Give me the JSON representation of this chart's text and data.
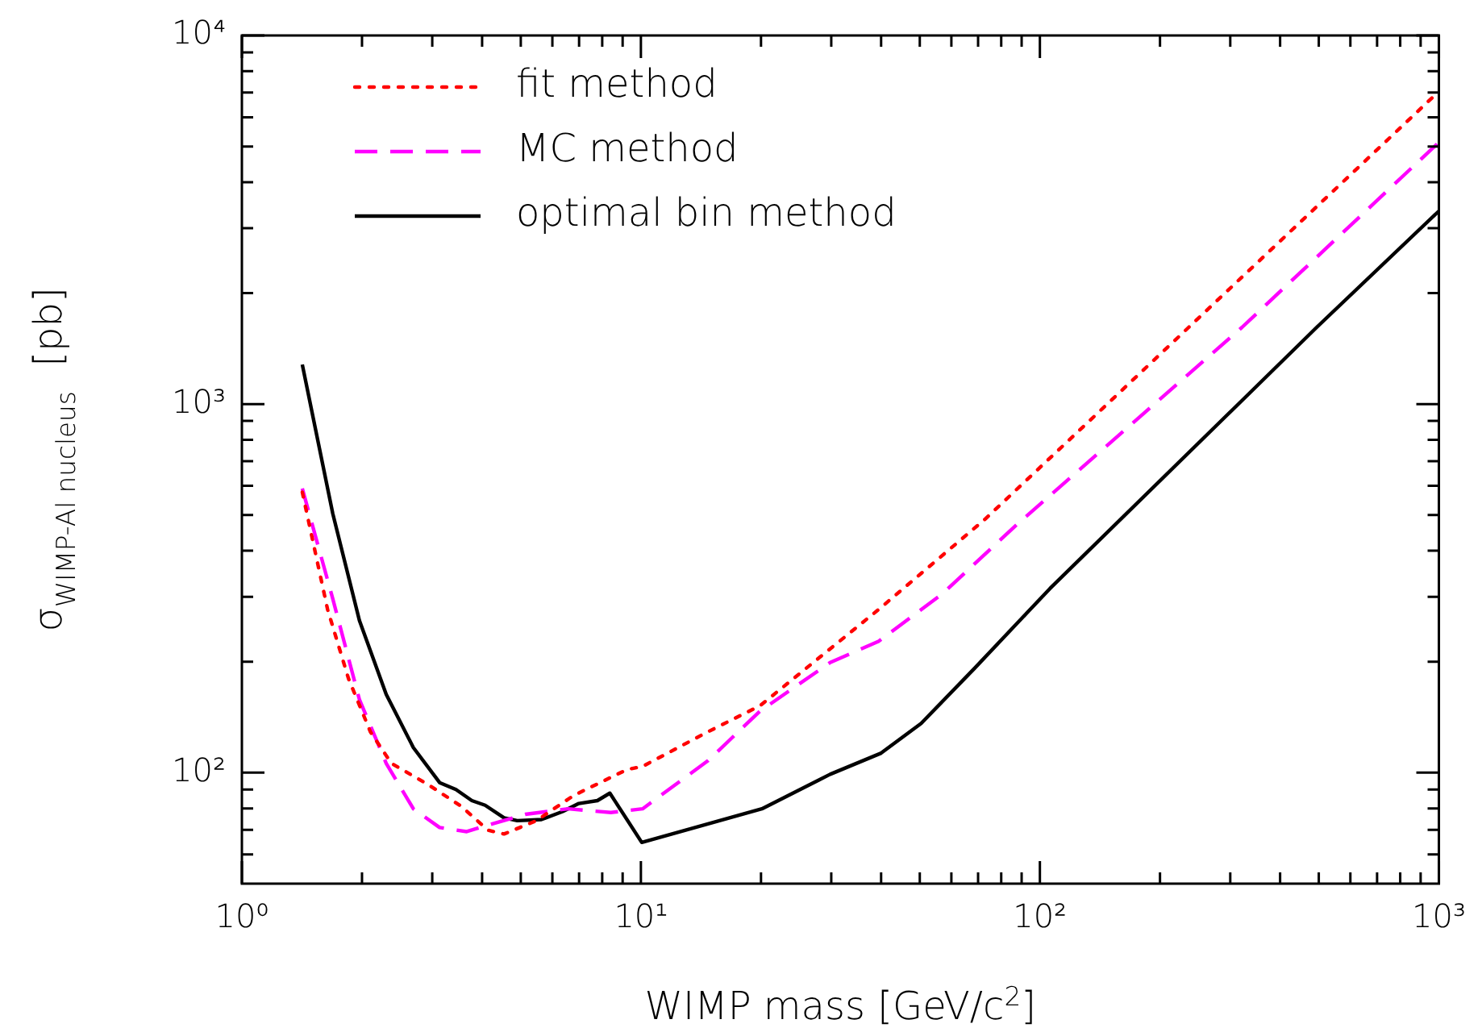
{
  "chart_data": {
    "type": "line",
    "xlabel": "WIMP mass [GeV/c$^{2}$]",
    "ylabel": "σ$_{WIMP-Al nucleus}$  [pb]",
    "log": "xy",
    "legend": "top left",
    "grid": false,
    "marker": "none",
    "xlim": [
      1,
      1000
    ],
    "ylim": [
      50,
      10000
    ],
    "xticks": [
      {
        "value": 1,
        "label": "10⁰"
      },
      {
        "value": 2,
        "label": null
      },
      {
        "value": 3,
        "label": null
      },
      {
        "value": 4,
        "label": null
      },
      {
        "value": 5,
        "label": null
      },
      {
        "value": 6,
        "label": null
      },
      {
        "value": 7,
        "label": null
      },
      {
        "value": 8,
        "label": null
      },
      {
        "value": 9,
        "label": null
      },
      {
        "value": 10,
        "label": "10¹"
      },
      {
        "value": 20,
        "label": null
      },
      {
        "value": 30,
        "label": null
      },
      {
        "value": 40,
        "label": null
      },
      {
        "value": 50,
        "label": null
      },
      {
        "value": 60,
        "label": null
      },
      {
        "value": 70,
        "label": null
      },
      {
        "value": 80,
        "label": null
      },
      {
        "value": 90,
        "label": null
      },
      {
        "value": 100,
        "label": "10²"
      },
      {
        "value": 200,
        "label": null
      },
      {
        "value": 300,
        "label": null
      },
      {
        "value": 400,
        "label": null
      },
      {
        "value": 500,
        "label": null
      },
      {
        "value": 600,
        "label": null
      },
      {
        "value": 700,
        "label": null
      },
      {
        "value": 800,
        "label": null
      },
      {
        "value": 900,
        "label": null
      },
      {
        "value": 1000,
        "label": "10³"
      }
    ],
    "yticks": [
      {
        "value": 60,
        "label": null
      },
      {
        "value": 70,
        "label": null
      },
      {
        "value": 80,
        "label": null
      },
      {
        "value": 90,
        "label": null
      },
      {
        "value": 100,
        "label": "10²"
      },
      {
        "value": 200,
        "label": null
      },
      {
        "value": 300,
        "label": null
      },
      {
        "value": 400,
        "label": null
      },
      {
        "value": 500,
        "label": null
      },
      {
        "value": 600,
        "label": null
      },
      {
        "value": 700,
        "label": null
      },
      {
        "value": 800,
        "label": null
      },
      {
        "value": 900,
        "label": null
      },
      {
        "value": 1000,
        "label": "10³"
      },
      {
        "value": 2000,
        "label": null
      },
      {
        "value": 3000,
        "label": null
      },
      {
        "value": 4000,
        "label": null
      },
      {
        "value": 5000,
        "label": null
      },
      {
        "value": 6000,
        "label": null
      },
      {
        "value": 7000,
        "label": null
      },
      {
        "value": 8000,
        "label": null
      },
      {
        "value": 9000,
        "label": null
      },
      {
        "value": 10000,
        "label": "10⁴"
      }
    ],
    "series": [
      {
        "name": "fit method",
        "color": "#ff0000",
        "line_style": "dotted",
        "x": [
          1.417,
          1.64,
          1.85,
          2.1,
          2.37,
          2.94,
          3.55,
          4.14,
          4.54,
          5.46,
          6.78,
          9.23,
          10.1,
          14.7,
          19.9,
          39.4,
          73,
          236,
          1000
        ],
        "values": [
          577,
          277,
          180,
          129,
          106,
          92.6,
          81,
          69.8,
          68.2,
          74,
          86.7,
          102,
          104,
          129,
          152,
          277,
          488,
          1615,
          7050
        ]
      },
      {
        "name": "MC method",
        "color": "#ff00ff",
        "line_style": "dashed",
        "x": [
          1.417,
          1.69,
          1.97,
          2.3,
          2.69,
          3.13,
          3.66,
          4.14,
          5.13,
          6.57,
          8.41,
          10.1,
          14.7,
          19.9,
          29.8,
          39.4,
          57,
          87.7,
          321,
          1000
        ],
        "values": [
          590,
          296,
          158,
          106,
          79.8,
          71,
          69.2,
          72.1,
          77.1,
          79.8,
          78,
          79.8,
          107.6,
          147,
          199,
          227,
          306,
          472,
          1615,
          5130
        ]
      },
      {
        "name": "optimal bin method",
        "color": "#000000",
        "line_style": "solid",
        "x": [
          1.417,
          1.69,
          1.97,
          2.3,
          2.69,
          3.13,
          3.44,
          3.77,
          4.07,
          4.54,
          4.9,
          5.63,
          6.37,
          6.99,
          7.78,
          8.36,
          10.05,
          20.1,
          29.8,
          40,
          50.4,
          68.6,
          106,
          494,
          1000
        ],
        "values": [
          1280,
          504,
          259,
          163,
          117,
          94,
          90,
          84,
          81.6,
          75.4,
          74.1,
          74.6,
          78.5,
          82.5,
          84,
          88,
          64.7,
          79.8,
          99,
          113,
          136,
          192,
          316,
          1615,
          3340
        ]
      }
    ]
  }
}
